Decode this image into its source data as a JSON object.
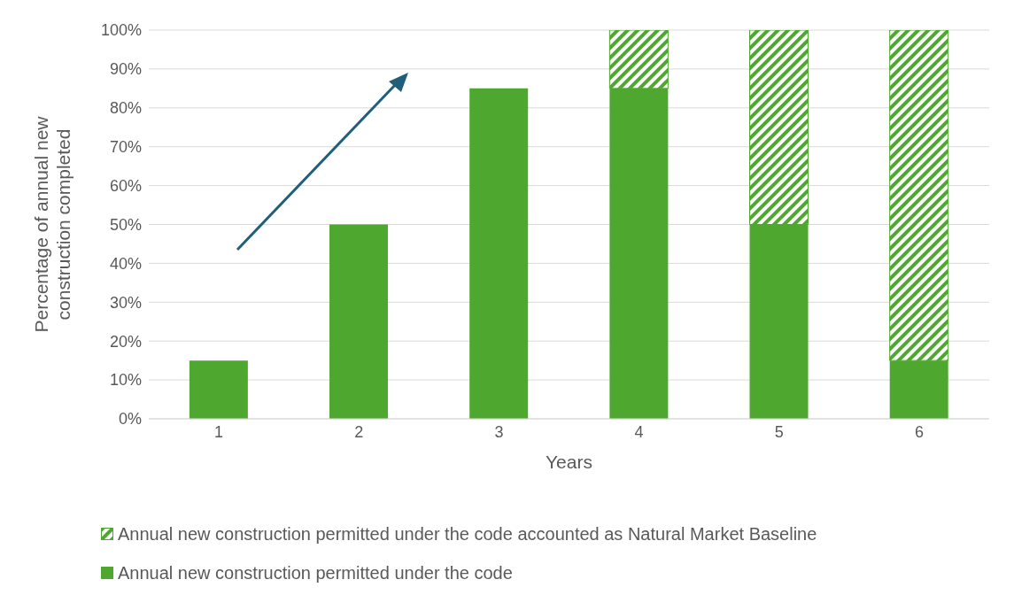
{
  "chart_data": {
    "type": "bar",
    "stacked": true,
    "xlabel": "Years",
    "ylabel": "Percentage of annual new construction completed",
    "categories": [
      "1",
      "2",
      "3",
      "4",
      "5",
      "6"
    ],
    "series": [
      {
        "name": "Annual new construction permitted under the code",
        "color": "#4ea72e",
        "values": [
          15,
          50,
          85,
          85,
          50,
          15
        ]
      },
      {
        "name": "Annual new construction permitted under the code accounted as Natural Market Baseline",
        "color": "#4ea72e",
        "values": [
          null,
          null,
          null,
          15,
          50,
          85
        ]
      }
    ],
    "ylim": [
      0,
      100
    ],
    "yticks": [
      {
        "value": 0,
        "label": "0%"
      },
      {
        "value": 10,
        "label": "10%"
      },
      {
        "value": 20,
        "label": "20%"
      },
      {
        "value": 30,
        "label": "30%"
      },
      {
        "value": 40,
        "label": "40%"
      },
      {
        "value": 50,
        "label": "50%"
      },
      {
        "value": 60,
        "label": "60%"
      },
      {
        "value": 70,
        "label": "70%"
      },
      {
        "value": 80,
        "label": "80%"
      },
      {
        "value": 90,
        "label": "90%"
      },
      {
        "value": 100,
        "label": "100%"
      }
    ],
    "grid": "y",
    "legend": "bottom"
  }
}
